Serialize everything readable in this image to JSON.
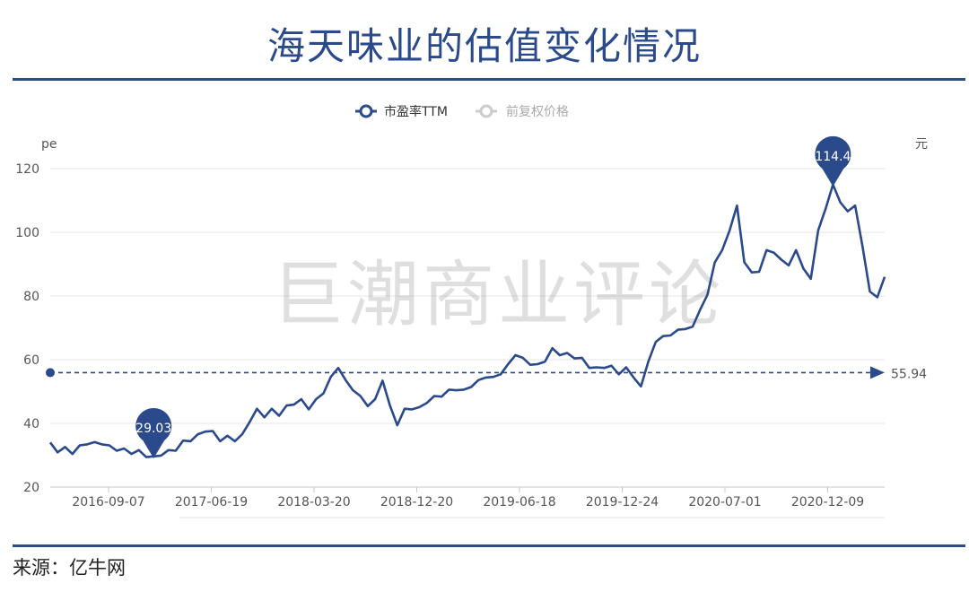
{
  "header": {
    "title": "海天味业的估值变化情况"
  },
  "footer": {
    "source": "来源：亿牛网"
  },
  "watermark": "巨潮商业评论",
  "chart_data": {
    "type": "line",
    "ylabel_left": "pe",
    "ylabel_right": "元",
    "ylim": [
      20,
      120
    ],
    "yticks": [
      20,
      40,
      60,
      80,
      100,
      120
    ],
    "x_tick_labels": [
      "2016-09-07",
      "2017-06-19",
      "2018-03-20",
      "2018-12-20",
      "2019-06-18",
      "2019-12-24",
      "2020-07-01",
      "2020-12-09"
    ],
    "legend": [
      {
        "name": "市盈率TTM",
        "color": "#2a4a8c",
        "active": true
      },
      {
        "name": "前复权价格",
        "color": "#bbbbbb",
        "active": false
      }
    ],
    "legend_position": "top-center",
    "grid": "horizontal",
    "reference_line": {
      "value": 55.94,
      "label": "55.94"
    },
    "min_marker": {
      "label": "29.03",
      "value": 29.03
    },
    "max_marker": {
      "label": "114.4",
      "value": 114.4
    },
    "series": [
      {
        "name": "市盈率TTM",
        "color": "#2a4a8c",
        "values": [
          34,
          31.5,
          32,
          31,
          32.5,
          34,
          33.5,
          34,
          32.5,
          32,
          31.5,
          31,
          31,
          30,
          29.03,
          30.5,
          31,
          32,
          34,
          35,
          36,
          38,
          37,
          35,
          35.5,
          35,
          36,
          41,
          44,
          42.5,
          44,
          43,
          45,
          46.5,
          47,
          45,
          47,
          50,
          54,
          58,
          53,
          51,
          48,
          46,
          47,
          54,
          45,
          40,
          44,
          45,
          44.5,
          47,
          48,
          49,
          50,
          51,
          50,
          52,
          53,
          55,
          54,
          56,
          58,
          62,
          60,
          59,
          58,
          60,
          63,
          62,
          61.5,
          61,
          60,
          58,
          57,
          58,
          57.5,
          56,
          57,
          55,
          51,
          60,
          65,
          68,
          67,
          70,
          69,
          71,
          75,
          81,
          90,
          95,
          100,
          109,
          90,
          88,
          87,
          95,
          93,
          92,
          89,
          95,
          88,
          86,
          100,
          108,
          114.4,
          110,
          106,
          109,
          95,
          82,
          79,
          86
        ]
      }
    ]
  }
}
